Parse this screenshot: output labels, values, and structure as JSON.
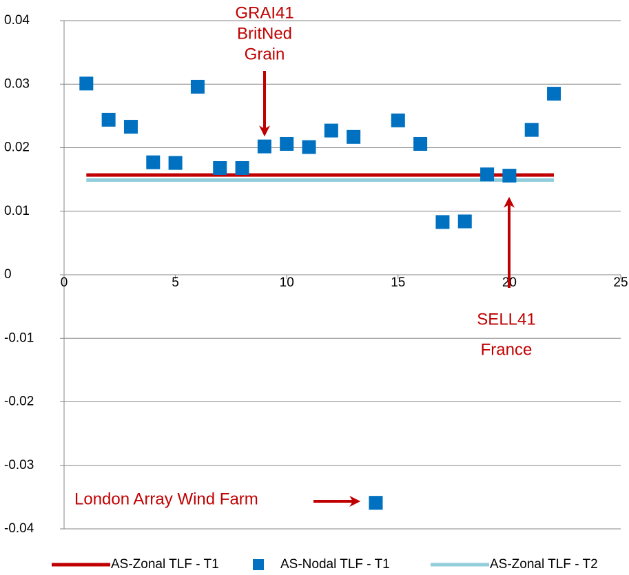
{
  "chart_data": {
    "type": "scatter",
    "xlim": [
      0,
      25
    ],
    "xticks": [
      0,
      5,
      10,
      15,
      20,
      25
    ],
    "ylim": [
      -0.04,
      0.04
    ],
    "yticks": [
      -0.04,
      -0.03,
      -0.02,
      -0.01,
      0,
      0.01,
      0.02,
      0.03,
      0.04
    ],
    "grid": true,
    "legend": "bottom",
    "series": [
      {
        "name": "AS-Zonal TLF - T1",
        "type": "line",
        "color": "#c00000",
        "x": [
          1,
          22
        ],
        "values": [
          0.0157,
          0.0157
        ]
      },
      {
        "name": "AS-Nodal TLF - T1",
        "type": "scatter",
        "color": "#0070c0",
        "x": [
          1,
          2,
          3,
          4,
          5,
          6,
          7,
          8,
          9,
          10,
          11,
          12,
          13,
          14,
          15,
          16,
          17,
          18,
          19,
          20,
          21,
          22
        ],
        "values": [
          0.0301,
          0.0244,
          0.0233,
          0.0177,
          0.0176,
          0.0296,
          0.0168,
          0.0168,
          0.0202,
          0.0206,
          0.0201,
          0.0227,
          0.0217,
          -0.0359,
          0.0243,
          0.0206,
          0.0083,
          0.0084,
          0.0158,
          0.0156,
          0.0228,
          0.0285
        ]
      },
      {
        "name": "AS-Zonal TLF - T2",
        "type": "line",
        "color": "#92cddc",
        "x": [
          1,
          22
        ],
        "values": [
          0.0149,
          0.0149
        ]
      }
    ],
    "annotations": [
      {
        "lines": [
          "GRAI41",
          "BritNed",
          "Grain"
        ]
      },
      {
        "lines": [
          "SELL41",
          "France"
        ]
      },
      {
        "lines": [
          "London Array Wind Farm"
        ]
      }
    ]
  }
}
